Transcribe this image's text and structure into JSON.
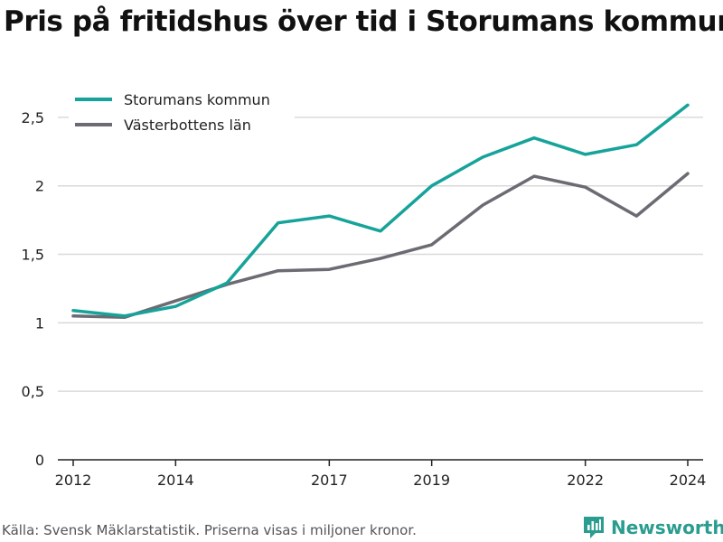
{
  "title": "Pris på fritidshus över tid i Storumans kommun",
  "source": "Källa: Svensk Mäklarstatistik. Priserna visas i miljoner kronor.",
  "brand": {
    "name": "Newsworthy",
    "icon": "bar-chart-logo-icon"
  },
  "colors": {
    "Storumans kommun": "#16a39a",
    "Västerbottens län": "#6b6b73",
    "grid": "#d9d9d9",
    "axis": "#222222"
  },
  "chart_data": {
    "type": "line",
    "title": "Pris på fritidshus över tid i Storumans kommun",
    "xlabel": "",
    "ylabel": "",
    "x": [
      2012,
      2013,
      2014,
      2015,
      2016,
      2017,
      2018,
      2019,
      2020,
      2021,
      2022,
      2023,
      2024
    ],
    "xticks": [
      2012,
      2014,
      2017,
      2019,
      2022,
      2024
    ],
    "xtick_labels": [
      "2012",
      "2014",
      "2017",
      "2019",
      "2022",
      "2024"
    ],
    "xlim": [
      2011.7,
      2024.3
    ],
    "ylim": [
      0,
      2.75
    ],
    "yticks": [
      0,
      0.5,
      1,
      1.5,
      2,
      2.5
    ],
    "ytick_labels": [
      "0",
      "0,5",
      "1",
      "1,5",
      "2",
      "2,5"
    ],
    "grid": true,
    "legend_position": "top-left",
    "series": [
      {
        "name": "Storumans kommun",
        "values": [
          1.09,
          1.05,
          1.12,
          1.29,
          1.73,
          1.78,
          1.67,
          2.0,
          2.21,
          2.35,
          2.23,
          2.3,
          2.59
        ]
      },
      {
        "name": "Västerbottens län",
        "values": [
          1.05,
          1.04,
          1.16,
          1.28,
          1.38,
          1.39,
          1.47,
          1.57,
          1.86,
          2.07,
          1.99,
          1.78,
          2.09
        ]
      }
    ]
  }
}
